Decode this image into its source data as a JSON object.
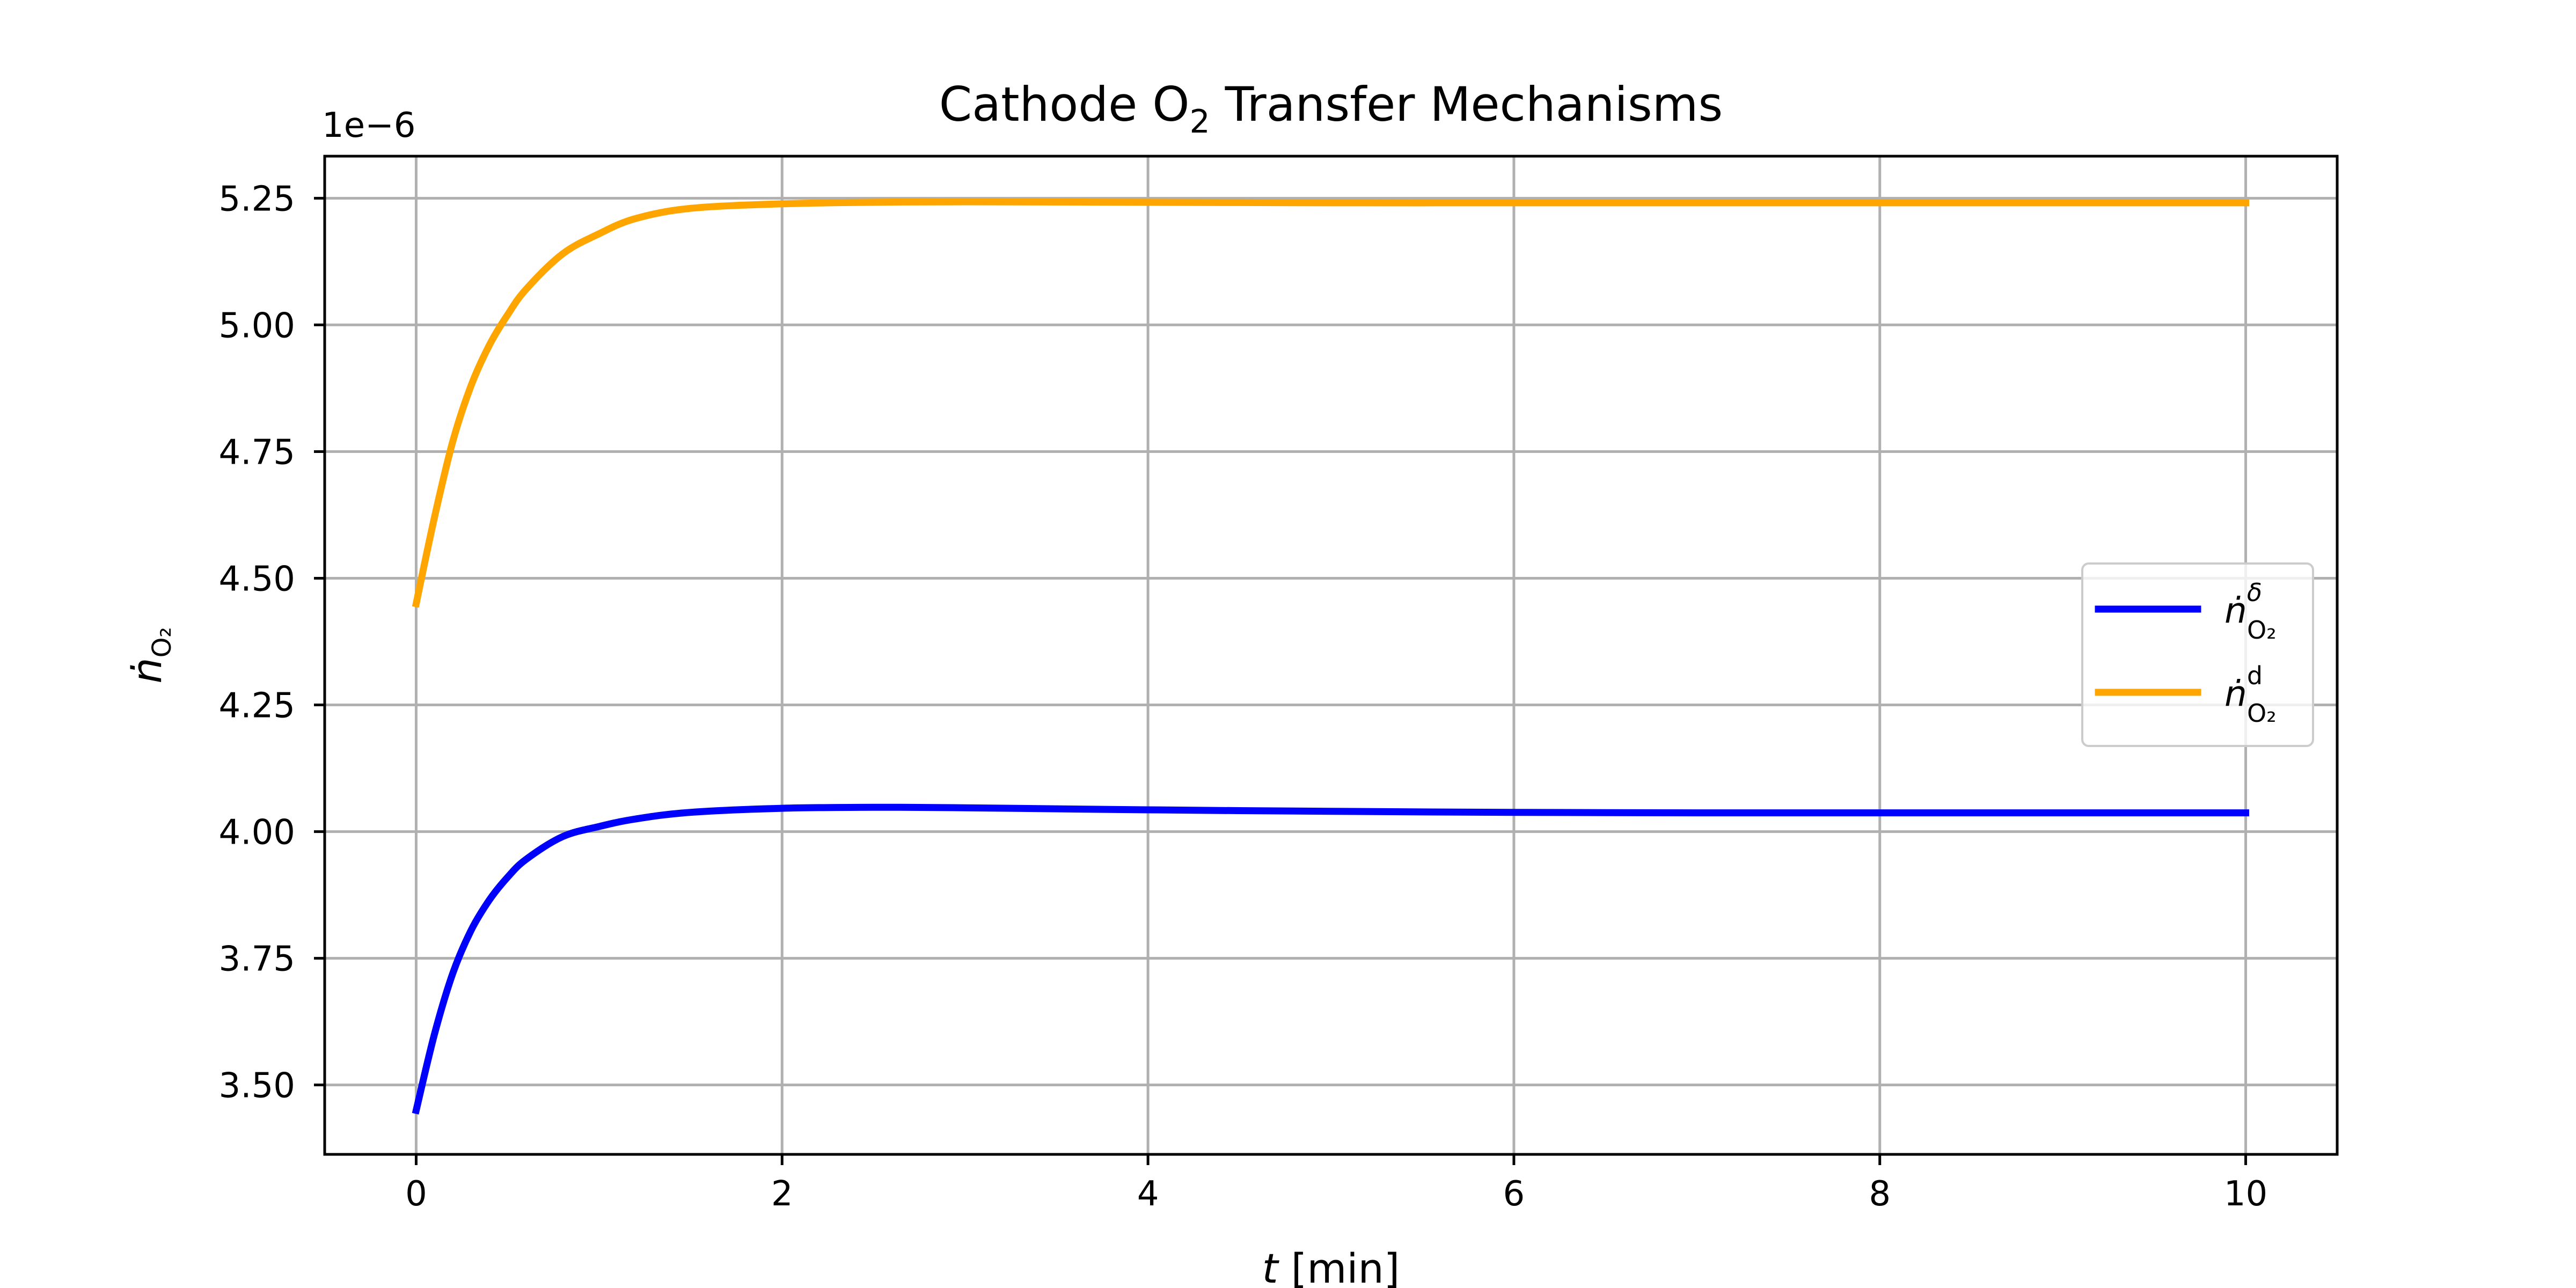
{
  "chart_data": {
    "type": "line",
    "title": "Cathode O₂ Transfer Mechanisms",
    "title_parts": {
      "pre": "Cathode O",
      "sub": "2",
      "post": " Transfer Mechanisms"
    },
    "xlabel": "t [min]",
    "xlabel_parts": {
      "var": "t",
      "unit": " [min]"
    },
    "ylabel": "ṅO₂",
    "ylabel_parts": {
      "base": "ṅ",
      "sub": "O₂"
    },
    "y_offset_label": "1e−6",
    "xlim": [
      -0.5,
      10.5
    ],
    "ylim": [
      3.363,
      5.333
    ],
    "x_ticks": [
      0,
      2,
      4,
      6,
      8,
      10
    ],
    "x_tick_labels": [
      "0",
      "2",
      "4",
      "6",
      "8",
      "10"
    ],
    "y_ticks": [
      3.5,
      3.75,
      4.0,
      4.25,
      4.5,
      4.75,
      5.0,
      5.25
    ],
    "y_tick_labels": [
      "3.50",
      "3.75",
      "4.00",
      "4.25",
      "4.50",
      "4.75",
      "5.00",
      "5.25"
    ],
    "grid": true,
    "legend_position": "center-right",
    "y_scale_factor": 1e-06,
    "series": [
      {
        "name": "ṅδO₂",
        "label_parts": {
          "base": "ṅ",
          "sup": "δ",
          "sub": "O₂"
        },
        "color": "#0000ff",
        "x": [
          0,
          0.1,
          0.2,
          0.3,
          0.4,
          0.5,
          0.6,
          0.8,
          1.0,
          1.2,
          1.5,
          2.0,
          2.5,
          3.0,
          4.0,
          5.0,
          6.0,
          7.0,
          8.0,
          9.0,
          10.0
        ],
        "y": [
          3.45,
          3.6,
          3.72,
          3.805,
          3.865,
          3.91,
          3.945,
          3.99,
          4.01,
          4.025,
          4.038,
          4.046,
          4.048,
          4.047,
          4.043,
          4.04,
          4.038,
          4.037,
          4.037,
          4.037,
          4.037
        ]
      },
      {
        "name": "ṅdO₂",
        "label_parts": {
          "base": "ṅ",
          "sup": "d",
          "sub": "O₂"
        },
        "color": "#ffa500",
        "x": [
          0,
          0.1,
          0.2,
          0.3,
          0.4,
          0.5,
          0.6,
          0.8,
          1.0,
          1.2,
          1.5,
          2.0,
          2.5,
          3.0,
          4.0,
          5.0,
          6.0,
          7.0,
          8.0,
          9.0,
          10.0
        ],
        "y": [
          4.45,
          4.62,
          4.77,
          4.88,
          4.96,
          5.02,
          5.07,
          5.14,
          5.18,
          5.21,
          5.23,
          5.239,
          5.242,
          5.243,
          5.242,
          5.241,
          5.241,
          5.241,
          5.241,
          5.241,
          5.241
        ]
      }
    ]
  }
}
